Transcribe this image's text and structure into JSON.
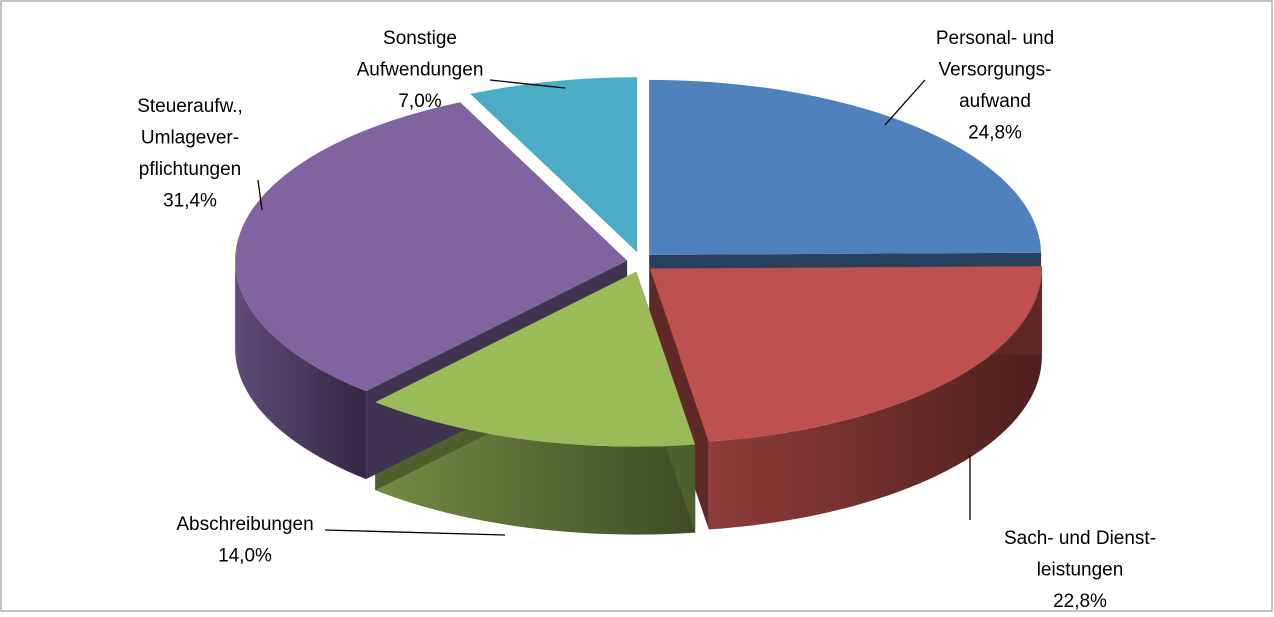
{
  "chart_data": {
    "type": "pie3d",
    "categories": [
      "Personal- und\nVersorgungs-\naufwand",
      "Sach- und Dienst-\nleistungen",
      "Abschreibungen",
      "Steueraufw.,\nUmlagever-\npflichtungen",
      "Sonstige\nAufwendungen"
    ],
    "values": [
      24.8,
      22.8,
      14.0,
      31.4,
      7.0
    ],
    "value_labels": [
      "24,8%",
      "22,8%",
      "14,0%",
      "31,4%",
      "7,0%"
    ],
    "colors": [
      "#4f81bd",
      "#c0504d",
      "#9bbb59",
      "#8064a2",
      "#4bacc6"
    ]
  }
}
